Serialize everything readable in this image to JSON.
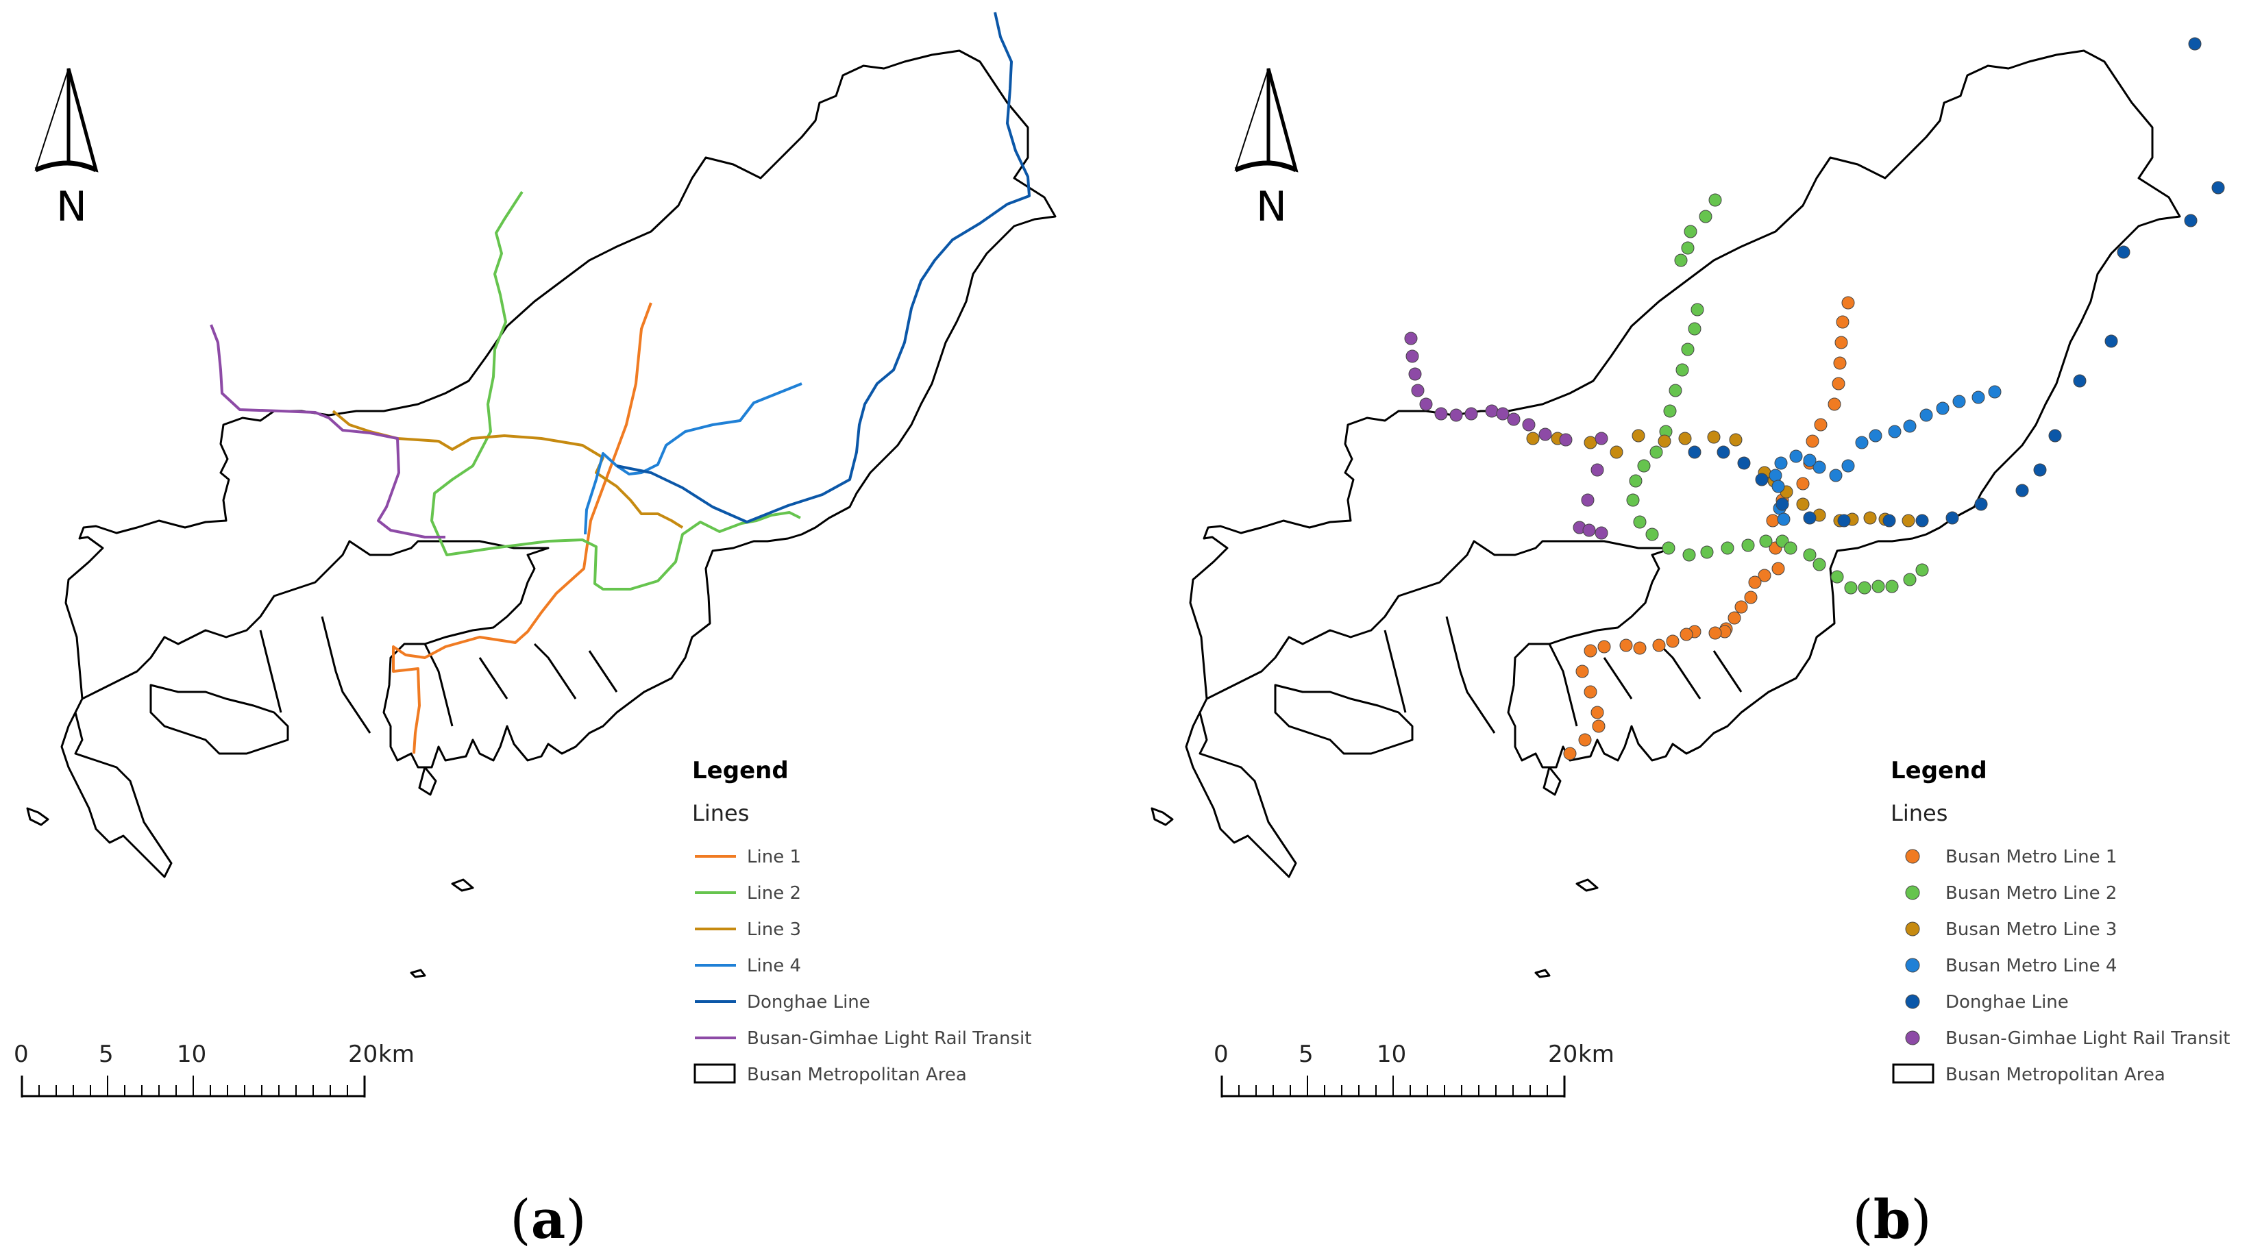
{
  "colors": {
    "line1": "#f07b22",
    "line2": "#66c44e",
    "line3": "#c68a10",
    "line4": "#1f80d6",
    "donghae": "#0b57a8",
    "bgl": "#8d4aa6",
    "boundary": "#000000"
  },
  "north_arrow": {
    "letter": "N",
    "icon": "north-arrow-icon"
  },
  "scale_bar": {
    "ticks": [
      "0",
      "5",
      "10",
      "20"
    ],
    "unit": "km"
  },
  "panels": [
    {
      "id": "a",
      "caption_open": "(",
      "caption_letter": "a",
      "caption_close": ")",
      "legend": {
        "title": "Legend",
        "subtitle": "Lines",
        "entries": [
          {
            "label": "Line 1",
            "color_key": "line1"
          },
          {
            "label": "Line 2",
            "color_key": "line2"
          },
          {
            "label": "Line 3",
            "color_key": "line3"
          },
          {
            "label": "Line 4",
            "color_key": "line4"
          },
          {
            "label": "Donghae Line",
            "color_key": "donghae"
          },
          {
            "label": "Busan-Gimhae Light Rail Transit",
            "color_key": "bgl"
          },
          {
            "label": "Busan Metropolitan Area",
            "color_key": "boundary"
          }
        ]
      }
    },
    {
      "id": "b",
      "caption_open": "(",
      "caption_letter": "b",
      "caption_close": ")",
      "legend": {
        "title": "Legend",
        "subtitle": "Lines",
        "entries": [
          {
            "label": "Busan Metro Line 1",
            "color_key": "line1"
          },
          {
            "label": "Busan Metro Line 2",
            "color_key": "line2"
          },
          {
            "label": "Busan Metro Line 3",
            "color_key": "line3"
          },
          {
            "label": "Busan Metro Line 4",
            "color_key": "line4"
          },
          {
            "label": "Donghae Line",
            "color_key": "donghae"
          },
          {
            "label": "Busan-Gimhae Light Rail Transit",
            "color_key": "bgl"
          },
          {
            "label": "Busan Metropolitan Area",
            "color_key": "boundary"
          }
        ]
      }
    }
  ]
}
